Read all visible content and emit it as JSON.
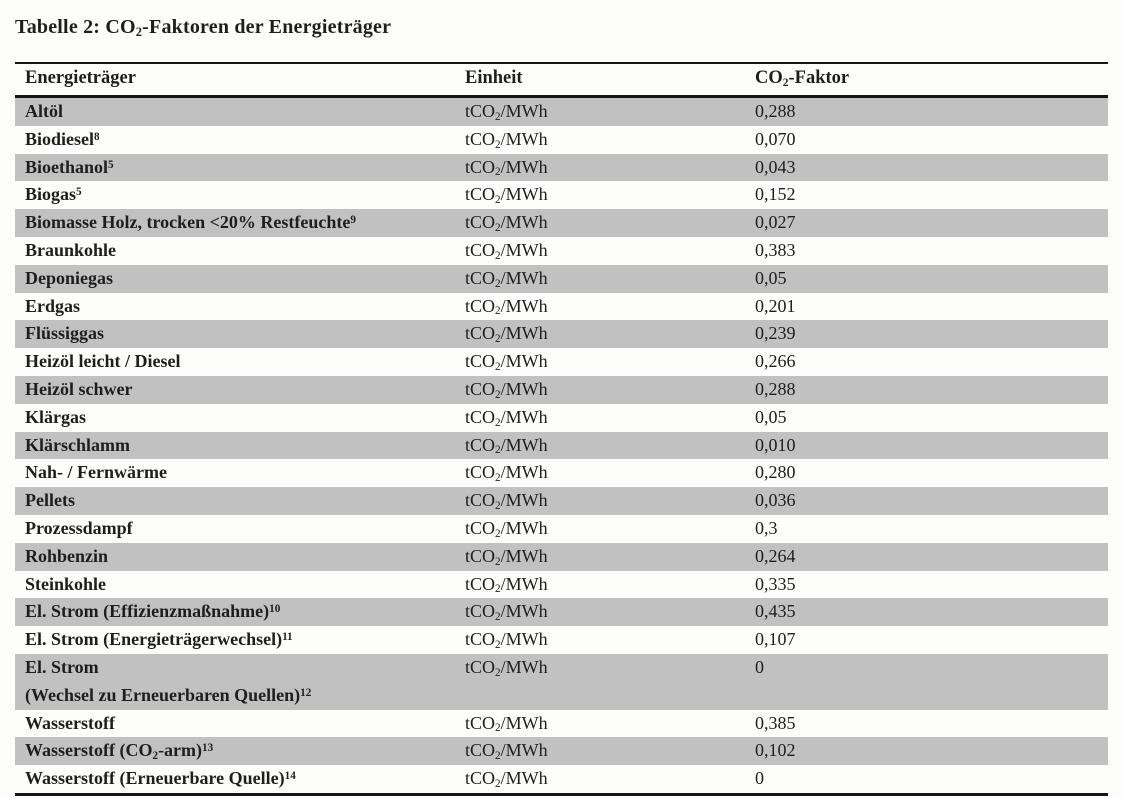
{
  "document": {
    "title_parts": [
      {
        "t": "Tabelle 2: CO"
      },
      {
        "t": "2",
        "sub": true
      },
      {
        "t": "-Faktoren der Energieträger"
      }
    ]
  },
  "table": {
    "columns": [
      {
        "label_parts": [
          {
            "t": "Energieträger"
          }
        ]
      },
      {
        "label_parts": [
          {
            "t": "Einheit"
          }
        ]
      },
      {
        "label_parts": [
          {
            "t": "CO"
          },
          {
            "t": "2",
            "sub": true
          },
          {
            "t": "-Faktor"
          }
        ]
      }
    ],
    "unit_parts": [
      {
        "t": "tCO"
      },
      {
        "t": "2",
        "sub": true
      },
      {
        "t": "/MWh"
      }
    ],
    "rows": [
      {
        "name_parts": [
          {
            "t": "Altöl"
          }
        ],
        "factor": "0,288"
      },
      {
        "name_parts": [
          {
            "t": "Biodiesel"
          },
          {
            "t": "8",
            "sup": true
          }
        ],
        "factor": "0,070"
      },
      {
        "name_parts": [
          {
            "t": "Bioethanol"
          },
          {
            "t": "5",
            "sup": true
          }
        ],
        "factor": "0,043"
      },
      {
        "name_parts": [
          {
            "t": "Biogas"
          },
          {
            "t": "5",
            "sup": true
          }
        ],
        "factor": "0,152"
      },
      {
        "name_parts": [
          {
            "t": "Biomasse Holz, trocken <20% Restfeuchte"
          },
          {
            "t": "9",
            "sup": true
          }
        ],
        "factor": "0,027"
      },
      {
        "name_parts": [
          {
            "t": "Braunkohle"
          }
        ],
        "factor": "0,383"
      },
      {
        "name_parts": [
          {
            "t": "Deponiegas"
          }
        ],
        "factor": "0,05"
      },
      {
        "name_parts": [
          {
            "t": "Erdgas"
          }
        ],
        "factor": "0,201"
      },
      {
        "name_parts": [
          {
            "t": "Flüssiggas"
          }
        ],
        "factor": "0,239"
      },
      {
        "name_parts": [
          {
            "t": "Heizöl leicht / Diesel"
          }
        ],
        "factor": "0,266"
      },
      {
        "name_parts": [
          {
            "t": "Heizöl schwer"
          }
        ],
        "factor": "0,288"
      },
      {
        "name_parts": [
          {
            "t": "Klärgas"
          }
        ],
        "factor": "0,05"
      },
      {
        "name_parts": [
          {
            "t": "Klärschlamm"
          }
        ],
        "factor": "0,010"
      },
      {
        "name_parts": [
          {
            "t": "Nah- / Fernwärme"
          }
        ],
        "factor": "0,280"
      },
      {
        "name_parts": [
          {
            "t": "Pellets"
          }
        ],
        "factor": "0,036"
      },
      {
        "name_parts": [
          {
            "t": "Prozessdampf"
          }
        ],
        "factor": "0,3"
      },
      {
        "name_parts": [
          {
            "t": "Rohbenzin"
          }
        ],
        "factor": "0,264"
      },
      {
        "name_parts": [
          {
            "t": "Steinkohle"
          }
        ],
        "factor": "0,335"
      },
      {
        "name_parts": [
          {
            "t": "El. Strom (Effizienzmaßnahme)"
          },
          {
            "t": "10",
            "sup": true
          }
        ],
        "factor": "0,435"
      },
      {
        "name_parts": [
          {
            "t": "El. Strom (Energieträgerwechsel)"
          },
          {
            "t": "11",
            "sup": true
          }
        ],
        "factor": "0,107"
      },
      {
        "name_parts": [
          {
            "t": "El. Strom"
          },
          {
            "br": true
          },
          {
            "t": "(Wechsel zu Erneuerbaren Quellen)"
          },
          {
            "t": "12",
            "sup": true
          }
        ],
        "factor": "0"
      },
      {
        "name_parts": [
          {
            "t": "Wasserstoff"
          }
        ],
        "factor": "0,385"
      },
      {
        "name_parts": [
          {
            "t": "Wasserstoff (CO"
          },
          {
            "t": "2",
            "sub": true
          },
          {
            "t": "-arm)"
          },
          {
            "t": "13",
            "sup": true
          }
        ],
        "factor": "0,102"
      },
      {
        "name_parts": [
          {
            "t": "Wasserstoff (Erneuerbare Quelle)"
          },
          {
            "t": "14",
            "sup": true
          }
        ],
        "factor": "0"
      }
    ],
    "colors": {
      "shaded_row": "#c1c1c1",
      "rule": "#161616",
      "text": "#1e1e1e",
      "background": "#fdfdfc"
    }
  }
}
